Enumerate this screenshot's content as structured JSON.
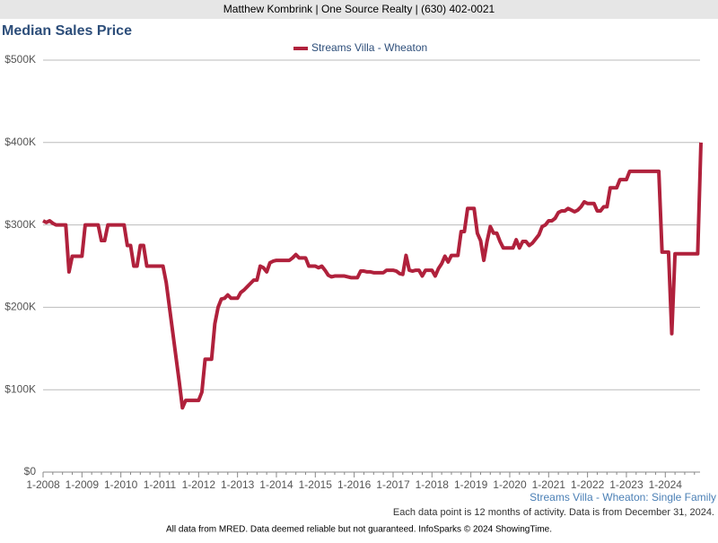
{
  "header": "Matthew Kombrink | One Source Realty | (630) 402-0021",
  "chart_data": {
    "type": "line",
    "title": "Median Sales Price",
    "categories": [
      "1-2008",
      null,
      null,
      null,
      null,
      null,
      null,
      null,
      null,
      null,
      null,
      null,
      "1-2009",
      null,
      null,
      null,
      null,
      null,
      null,
      null,
      null,
      null,
      null,
      null,
      "1-2010",
      null,
      null,
      null,
      null,
      null,
      null,
      null,
      null,
      null,
      null,
      null,
      "1-2011",
      null,
      null,
      null,
      null,
      null,
      null,
      null,
      null,
      null,
      null,
      null,
      "1-2012",
      null,
      null,
      null,
      null,
      null,
      null,
      null,
      null,
      null,
      null,
      null,
      "1-2013",
      null,
      null,
      null,
      null,
      null,
      null,
      null,
      null,
      null,
      null,
      null,
      "1-2014",
      null,
      null,
      null,
      null,
      null,
      null,
      null,
      null,
      null,
      null,
      null,
      "1-2015",
      null,
      null,
      null,
      null,
      null,
      null,
      null,
      null,
      null,
      null,
      null,
      "1-2016",
      null,
      null,
      null,
      null,
      null,
      null,
      null,
      null,
      null,
      null,
      null,
      "1-2017",
      null,
      null,
      null,
      null,
      null,
      null,
      null,
      null,
      null,
      null,
      null,
      "1-2018",
      null,
      null,
      null,
      null,
      null,
      null,
      null,
      null,
      null,
      null,
      null,
      "1-2019",
      null,
      null,
      null,
      null,
      null,
      null,
      null,
      null,
      null,
      null,
      null,
      "1-2020",
      null,
      null,
      null,
      null,
      null,
      null,
      null,
      null,
      null,
      null,
      null,
      "1-2021",
      null,
      null,
      null,
      null,
      null,
      null,
      null,
      null,
      null,
      null,
      null,
      "1-2022",
      null,
      null,
      null,
      null,
      null,
      null,
      null,
      null,
      null,
      null,
      null,
      "1-2023",
      null,
      null,
      null,
      null,
      null,
      null,
      null,
      null,
      null,
      null,
      null,
      "1-2024",
      null,
      null,
      null,
      null,
      null,
      null,
      null,
      null,
      null,
      null,
      null
    ],
    "series": [
      {
        "name": "Streams Villa - Wheaton",
        "color": "#b0213c",
        "values": [
          305000,
          303000,
          305000,
          302000,
          300000,
          300000,
          300000,
          300000,
          243000,
          262000,
          262000,
          262000,
          262000,
          300000,
          300000,
          300000,
          300000,
          300000,
          281000,
          281000,
          300000,
          300000,
          300000,
          300000,
          300000,
          300000,
          275000,
          275000,
          250000,
          250000,
          275000,
          275000,
          250000,
          250000,
          250000,
          250000,
          250000,
          250000,
          230000,
          200000,
          170000,
          140000,
          110000,
          78000,
          87000,
          87000,
          87000,
          87000,
          87000,
          97000,
          137000,
          137000,
          137000,
          180000,
          200000,
          210000,
          211000,
          215000,
          211000,
          211000,
          211000,
          218000,
          221000,
          225000,
          229000,
          233000,
          233000,
          250000,
          248000,
          243000,
          254000,
          256000,
          257000,
          257000,
          257000,
          257000,
          257000,
          260000,
          264000,
          260000,
          260000,
          260000,
          250000,
          250000,
          250000,
          248000,
          250000,
          245000,
          239000,
          237000,
          238000,
          238000,
          238000,
          238000,
          237000,
          236000,
          236000,
          236000,
          244000,
          244000,
          243000,
          243000,
          242000,
          242000,
          242000,
          242000,
          245000,
          245000,
          245000,
          244000,
          241000,
          240000,
          263000,
          245000,
          244000,
          245000,
          245000,
          238000,
          245000,
          245000,
          245000,
          238000,
          247000,
          253000,
          262000,
          255000,
          263000,
          263000,
          263000,
          292000,
          292000,
          320000,
          320000,
          320000,
          290000,
          281000,
          257000,
          280000,
          298000,
          290000,
          290000,
          280000,
          272000,
          272000,
          272000,
          272000,
          282000,
          272000,
          280000,
          280000,
          275000,
          278000,
          283000,
          288000,
          298000,
          300000,
          305000,
          305000,
          308000,
          315000,
          317000,
          317000,
          320000,
          318000,
          316000,
          318000,
          322000,
          328000,
          326000,
          326000,
          326000,
          317000,
          317000,
          322000,
          322000,
          345000,
          345000,
          345000,
          355000,
          355000,
          355000,
          365000,
          365000,
          365000,
          365000,
          365000,
          365000,
          365000,
          365000,
          365000,
          365000,
          267000,
          267000,
          267000,
          168000,
          265000,
          265000,
          265000,
          265000,
          265000,
          265000,
          265000,
          265000,
          400000
        ]
      }
    ],
    "ylim": [
      0,
      500000
    ],
    "yticks": [
      {
        "value": 0,
        "label": "$0"
      },
      {
        "value": 100000,
        "label": "$100K"
      },
      {
        "value": 200000,
        "label": "$200K"
      },
      {
        "value": 300000,
        "label": "$300K"
      },
      {
        "value": 400000,
        "label": "$400K"
      },
      {
        "value": 500000,
        "label": "$500K"
      }
    ],
    "grid": true,
    "subtitle": "Streams Villa - Wheaton: Single Family",
    "note": "Each data point is 12 months of activity. Data is from December 31, 2024.",
    "footer": "All data from MRED. Data deemed reliable but not guaranteed. InfoSparks © 2024 ShowingTime."
  }
}
